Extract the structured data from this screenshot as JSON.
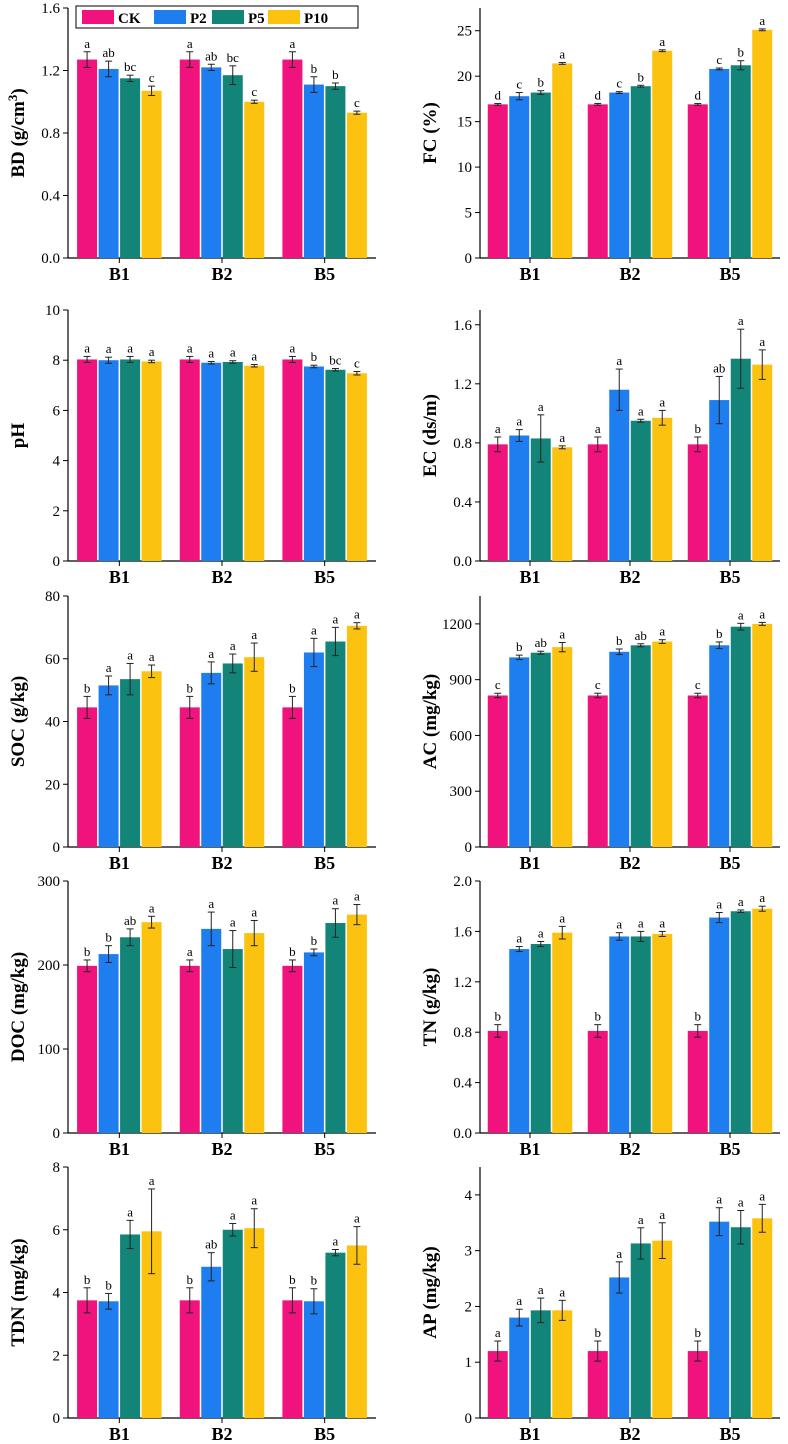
{
  "colors": {
    "CK": "#f0127d",
    "P2": "#1e7ef0",
    "P5": "#138578",
    "P10": "#fbc20f"
  },
  "legend": [
    "CK",
    "P2",
    "P5",
    "P10"
  ],
  "chart_data": [
    {
      "type": "bar",
      "ylabel": "BD (g/cm",
      "ylabel_sup": "3",
      "ylabel_tail": ")",
      "ylim": [
        0,
        1.6
      ],
      "yticks": [
        "0.0",
        "0.4",
        "0.8",
        "1.2",
        "1.6"
      ],
      "categories": [
        "B1",
        "B2",
        "B5"
      ],
      "series": [
        {
          "name": "CK",
          "values": [
            1.27,
            1.27,
            1.27
          ],
          "errors": [
            0.05,
            0.05,
            0.05
          ],
          "letters": [
            "a",
            "a",
            "a"
          ]
        },
        {
          "name": "P2",
          "values": [
            1.21,
            1.22,
            1.11
          ],
          "errors": [
            0.05,
            0.02,
            0.05
          ],
          "letters": [
            "ab",
            "ab",
            "b"
          ]
        },
        {
          "name": "P5",
          "values": [
            1.15,
            1.17,
            1.1
          ],
          "errors": [
            0.02,
            0.06,
            0.02
          ],
          "letters": [
            "bc",
            "bc",
            "b"
          ]
        },
        {
          "name": "P10",
          "values": [
            1.07,
            1.0,
            0.93
          ],
          "errors": [
            0.03,
            0.01,
            0.01
          ],
          "letters": [
            "c",
            "c",
            "c"
          ]
        }
      ]
    },
    {
      "type": "bar",
      "ylabel": "FC (%)",
      "ylim": [
        0,
        27.5
      ],
      "yticks": [
        "0",
        "5",
        "10",
        "15",
        "20",
        "25"
      ],
      "categories": [
        "B1",
        "B2",
        "B5"
      ],
      "series": [
        {
          "name": "CK",
          "values": [
            16.9,
            16.9,
            16.9
          ],
          "errors": [
            0.1,
            0.1,
            0.1
          ],
          "letters": [
            "d",
            "d",
            "d"
          ]
        },
        {
          "name": "P2",
          "values": [
            17.8,
            18.2,
            20.8
          ],
          "errors": [
            0.4,
            0.1,
            0.1
          ],
          "letters": [
            "c",
            "c",
            "c"
          ]
        },
        {
          "name": "P5",
          "values": [
            18.2,
            18.9,
            21.2
          ],
          "errors": [
            0.2,
            0.1,
            0.5
          ],
          "letters": [
            "b",
            "b",
            "b"
          ]
        },
        {
          "name": "P10",
          "values": [
            21.4,
            22.8,
            25.1
          ],
          "errors": [
            0.1,
            0.1,
            0.1
          ],
          "letters": [
            "a",
            "a",
            "a"
          ]
        }
      ]
    },
    {
      "type": "bar",
      "ylabel": "pH",
      "ylim": [
        0,
        10
      ],
      "yticks": [
        "0",
        "2",
        "4",
        "6",
        "8",
        "10"
      ],
      "categories": [
        "B1",
        "B2",
        "B5"
      ],
      "series": [
        {
          "name": "CK",
          "values": [
            8.03,
            8.03,
            8.03
          ],
          "errors": [
            0.12,
            0.12,
            0.12
          ],
          "letters": [
            "a",
            "a",
            "a"
          ]
        },
        {
          "name": "P2",
          "values": [
            8.0,
            7.9,
            7.75
          ],
          "errors": [
            0.12,
            0.05,
            0.05
          ],
          "letters": [
            "a",
            "a",
            "b"
          ]
        },
        {
          "name": "P5",
          "values": [
            8.03,
            7.93,
            7.62
          ],
          "errors": [
            0.12,
            0.05,
            0.05
          ],
          "letters": [
            "a",
            "a",
            "bc"
          ]
        },
        {
          "name": "P10",
          "values": [
            7.95,
            7.78,
            7.48
          ],
          "errors": [
            0.05,
            0.05,
            0.07
          ],
          "letters": [
            "a",
            "a",
            "c"
          ]
        }
      ]
    },
    {
      "type": "bar",
      "ylabel": "EC (ds/m)",
      "ylim": [
        0,
        1.7
      ],
      "yticks": [
        "0.0",
        "0.4",
        "0.8",
        "1.2",
        "1.6"
      ],
      "categories": [
        "B1",
        "B2",
        "B5"
      ],
      "series": [
        {
          "name": "CK",
          "values": [
            0.79,
            0.79,
            0.79
          ],
          "errors": [
            0.05,
            0.05,
            0.05
          ],
          "letters": [
            "a",
            "a",
            "b"
          ]
        },
        {
          "name": "P2",
          "values": [
            0.85,
            1.16,
            1.09
          ],
          "errors": [
            0.04,
            0.14,
            0.16
          ],
          "letters": [
            "a",
            "a",
            "ab"
          ]
        },
        {
          "name": "P5",
          "values": [
            0.83,
            0.95,
            1.37
          ],
          "errors": [
            0.16,
            0.01,
            0.2
          ],
          "letters": [
            "a",
            "a",
            "a"
          ]
        },
        {
          "name": "P10",
          "values": [
            0.77,
            0.97,
            1.33
          ],
          "errors": [
            0.01,
            0.05,
            0.1
          ],
          "letters": [
            "a",
            "a",
            "a"
          ]
        }
      ]
    },
    {
      "type": "bar",
      "ylabel": "SOC (g/kg)",
      "ylim": [
        0,
        80
      ],
      "yticks": [
        "0",
        "20",
        "40",
        "60",
        "80"
      ],
      "categories": [
        "B1",
        "B2",
        "B5"
      ],
      "series": [
        {
          "name": "CK",
          "values": [
            44.5,
            44.5,
            44.5
          ],
          "errors": [
            3.5,
            3.5,
            3.5
          ],
          "letters": [
            "b",
            "b",
            "b"
          ]
        },
        {
          "name": "P2",
          "values": [
            51.5,
            55.5,
            62.0
          ],
          "errors": [
            3.0,
            3.5,
            4.5
          ],
          "letters": [
            "a",
            "a",
            "a"
          ]
        },
        {
          "name": "P5",
          "values": [
            53.5,
            58.5,
            65.5
          ],
          "errors": [
            5.0,
            3.0,
            4.5
          ],
          "letters": [
            "a",
            "a",
            "a"
          ]
        },
        {
          "name": "P10",
          "values": [
            56.0,
            60.5,
            70.5
          ],
          "errors": [
            2.0,
            4.5,
            1.0
          ],
          "letters": [
            "a",
            "a",
            "a"
          ]
        }
      ]
    },
    {
      "type": "bar",
      "ylabel": "AC (mg/kg)",
      "ylim": [
        0,
        1350
      ],
      "yticks": [
        "0",
        "300",
        "600",
        "900",
        "1200"
      ],
      "categories": [
        "B1",
        "B2",
        "B5"
      ],
      "series": [
        {
          "name": "CK",
          "values": [
            815,
            815,
            815
          ],
          "errors": [
            12,
            12,
            12
          ],
          "letters": [
            "c",
            "c",
            "c"
          ]
        },
        {
          "name": "P2",
          "values": [
            1020,
            1050,
            1085
          ],
          "errors": [
            12,
            15,
            18
          ],
          "letters": [
            "b",
            "b",
            "b"
          ]
        },
        {
          "name": "P5",
          "values": [
            1045,
            1085,
            1185
          ],
          "errors": [
            8,
            8,
            18
          ],
          "letters": [
            "ab",
            "ab",
            "a"
          ]
        },
        {
          "name": "P10",
          "values": [
            1075,
            1105,
            1200
          ],
          "errors": [
            25,
            10,
            8
          ],
          "letters": [
            "a",
            "a",
            "a"
          ]
        }
      ]
    },
    {
      "type": "bar",
      "ylabel": "DOC (mg/kg)",
      "ylim": [
        0,
        300
      ],
      "yticks": [
        "0",
        "100",
        "200",
        "300"
      ],
      "categories": [
        "B1",
        "B2",
        "B5"
      ],
      "series": [
        {
          "name": "CK",
          "values": [
            199,
            199,
            199
          ],
          "errors": [
            7,
            7,
            7
          ],
          "letters": [
            "b",
            "a",
            "b"
          ]
        },
        {
          "name": "P2",
          "values": [
            213,
            243,
            215
          ],
          "errors": [
            10,
            20,
            4
          ],
          "letters": [
            "b",
            "a",
            "b"
          ]
        },
        {
          "name": "P5",
          "values": [
            233,
            219,
            250
          ],
          "errors": [
            10,
            22,
            17
          ],
          "letters": [
            "ab",
            "a",
            "a"
          ]
        },
        {
          "name": "P10",
          "values": [
            251,
            238,
            260
          ],
          "errors": [
            7,
            15,
            12
          ],
          "letters": [
            "a",
            "a",
            "a"
          ]
        }
      ]
    },
    {
      "type": "bar",
      "ylabel": "TN (g/kg)",
      "ylim": [
        0,
        2.0
      ],
      "yticks": [
        "0.0",
        "0.4",
        "0.8",
        "1.2",
        "1.6",
        "2.0"
      ],
      "categories": [
        "B1",
        "B2",
        "B5"
      ],
      "series": [
        {
          "name": "CK",
          "values": [
            0.81,
            0.81,
            0.81
          ],
          "errors": [
            0.05,
            0.05,
            0.05
          ],
          "letters": [
            "b",
            "b",
            "b"
          ]
        },
        {
          "name": "P2",
          "values": [
            1.46,
            1.56,
            1.71
          ],
          "errors": [
            0.02,
            0.03,
            0.04
          ],
          "letters": [
            "a",
            "a",
            "a"
          ]
        },
        {
          "name": "P5",
          "values": [
            1.5,
            1.56,
            1.76
          ],
          "errors": [
            0.02,
            0.04,
            0.01
          ],
          "letters": [
            "a",
            "a",
            "a"
          ]
        },
        {
          "name": "P10",
          "values": [
            1.59,
            1.58,
            1.78
          ],
          "errors": [
            0.05,
            0.02,
            0.02
          ],
          "letters": [
            "a",
            "a",
            "a"
          ]
        }
      ]
    },
    {
      "type": "bar",
      "ylabel": "TDN (mg/kg)",
      "ylim": [
        0,
        8
      ],
      "yticks": [
        "0",
        "2",
        "4",
        "6",
        "8"
      ],
      "categories": [
        "B1",
        "B2",
        "B5"
      ],
      "series": [
        {
          "name": "CK",
          "values": [
            3.75,
            3.75,
            3.75
          ],
          "errors": [
            0.4,
            0.4,
            0.4
          ],
          "letters": [
            "b",
            "b",
            "b"
          ]
        },
        {
          "name": "P2",
          "values": [
            3.72,
            4.82,
            3.72
          ],
          "errors": [
            0.25,
            0.45,
            0.4
          ],
          "letters": [
            "b",
            "ab",
            "b"
          ]
        },
        {
          "name": "P5",
          "values": [
            5.85,
            6.0,
            5.27
          ],
          "errors": [
            0.45,
            0.2,
            0.1
          ],
          "letters": [
            "a",
            "a",
            "a"
          ]
        },
        {
          "name": "P10",
          "values": [
            5.95,
            6.05,
            5.5
          ],
          "errors": [
            1.35,
            0.62,
            0.6
          ],
          "letters": [
            "a",
            "a",
            "a"
          ]
        }
      ]
    },
    {
      "type": "bar",
      "ylabel": "AP (mg/kg)",
      "ylim": [
        0,
        4.5
      ],
      "yticks": [
        "0",
        "1",
        "2",
        "3",
        "4"
      ],
      "categories": [
        "B1",
        "B2",
        "B5"
      ],
      "series": [
        {
          "name": "CK",
          "values": [
            1.2,
            1.2,
            1.2
          ],
          "errors": [
            0.18,
            0.18,
            0.18
          ],
          "letters": [
            "a",
            "b",
            "b"
          ]
        },
        {
          "name": "P2",
          "values": [
            1.8,
            2.52,
            3.52
          ],
          "errors": [
            0.15,
            0.28,
            0.25
          ],
          "letters": [
            "a",
            "a",
            "a"
          ]
        },
        {
          "name": "P5",
          "values": [
            1.93,
            3.13,
            3.42
          ],
          "errors": [
            0.22,
            0.28,
            0.3
          ],
          "letters": [
            "a",
            "a",
            "a"
          ]
        },
        {
          "name": "P10",
          "values": [
            1.93,
            3.18,
            3.58
          ],
          "errors": [
            0.18,
            0.32,
            0.25
          ],
          "letters": [
            "a",
            "a",
            "a"
          ]
        }
      ]
    }
  ]
}
